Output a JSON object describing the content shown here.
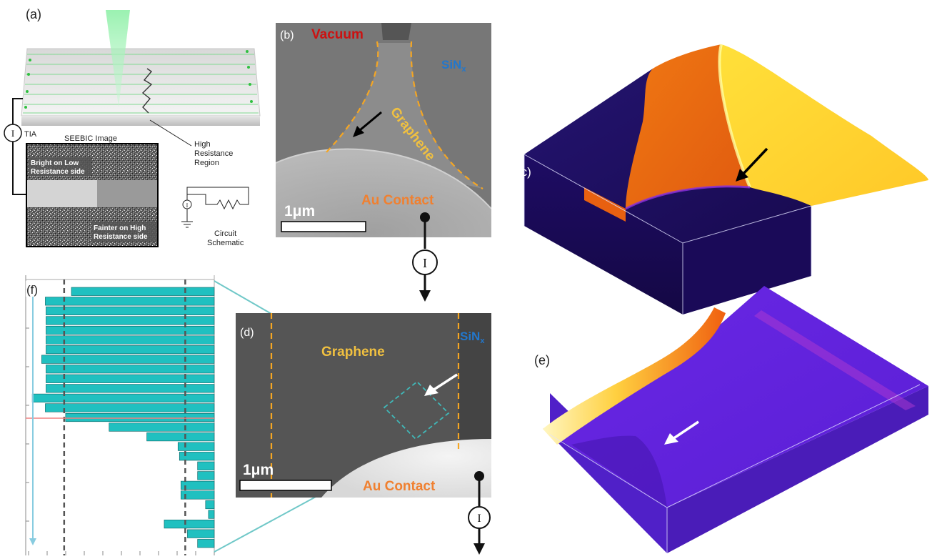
{
  "panel_a": {
    "label": "(a)",
    "tia": "TIA",
    "current_symbol": "I",
    "seebic_title": "SEEBIC Image",
    "bright_line1": "Bright on Low",
    "bright_line2": "Resistance side",
    "fainter_line1": "Fainter on High",
    "fainter_line2": "Resistance side",
    "hr_line1": "High",
    "hr_line2": "Resistance",
    "hr_line3": "Region",
    "circuit_line1": "Circuit",
    "circuit_line2": "Schematic"
  },
  "panel_b": {
    "label": "(b)",
    "vacuum": "Vacuum",
    "sin_main": "SiN",
    "sin_sub": "x",
    "graphene": "Graphene",
    "au": "Au Contact",
    "scalebar": "1μm"
  },
  "panel_c": {
    "label": "(c)"
  },
  "panel_d": {
    "label": "(d)",
    "graphene": "Graphene",
    "sin_main": "SiN",
    "sin_sub": "x",
    "au": "Au Contact",
    "scalebar": "1μm"
  },
  "panel_e": {
    "label": "(e)"
  },
  "panel_f": {
    "label": "(f)"
  },
  "current_symbol": "I",
  "colors": {
    "teal_bar": "#20c0c0",
    "orange_dash": "#f5a623",
    "vacuum_red": "#cc1111",
    "sin_blue": "#2277cc",
    "graphene_yellow": "#f0c040",
    "au_orange": "#f08030",
    "dark_violet": "#1a0a60",
    "violet": "#6a20e0",
    "hot_orange": "#f07010",
    "yellow": "#fff050"
  },
  "chart_data": {
    "type": "bar",
    "orientation": "horizontal",
    "values": [
      197,
      233,
      232,
      232,
      232,
      232,
      232,
      238,
      232,
      232,
      232,
      251,
      233,
      205,
      145,
      93,
      50,
      48,
      23,
      23,
      46,
      46,
      12,
      8,
      69,
      37,
      23
    ],
    "xlim": [
      0,
      260
    ],
    "ylim": [
      0,
      27
    ],
    "reference_lines": [
      207,
      40
    ],
    "grid": false
  }
}
